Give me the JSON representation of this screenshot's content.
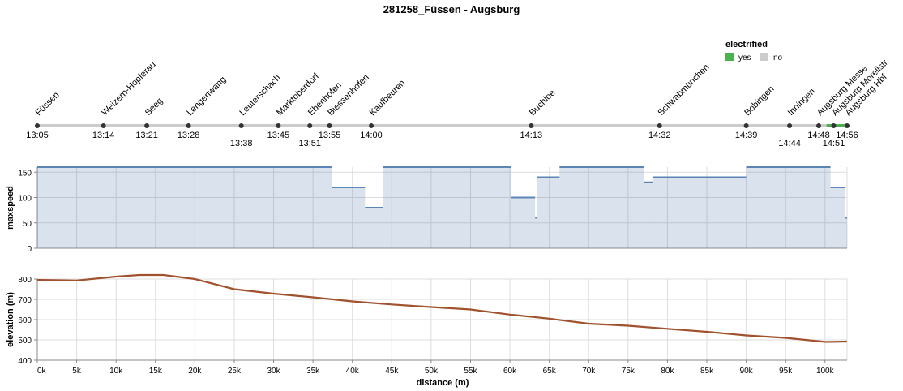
{
  "chart_data": [
    {
      "type": "timeline",
      "title": "281258_Füssen - Augsburg",
      "legend": {
        "title": "electrified",
        "position": "top-right",
        "entries": [
          {
            "label": "yes",
            "color": "#4caf50"
          },
          {
            "label": "no",
            "color": "#cccccc"
          }
        ]
      },
      "electrified_segments": [
        {
          "from_km": 62.7,
          "to_km": 63.0,
          "value": "yes"
        },
        {
          "from_km": 100.2,
          "to_km": 102.8,
          "value": "yes"
        }
      ],
      "stations": [
        {
          "name": "Füssen",
          "km": 0,
          "time": "13:05",
          "time_row": 0
        },
        {
          "name": "Weizern-Hopferau",
          "km": 8.4,
          "time": "13:14",
          "time_row": 0
        },
        {
          "name": "Seeg",
          "km": 13.9,
          "time": "13:21",
          "time_row": 0
        },
        {
          "name": "Lengenwang",
          "km": 19.2,
          "time": "13:28",
          "time_row": 0
        },
        {
          "name": "Leuterschach",
          "km": 25.9,
          "time": "13:38",
          "time_row": 1
        },
        {
          "name": "Marktoberdorf",
          "km": 30.6,
          "time": "13:45",
          "time_row": 0
        },
        {
          "name": "Ebenhofen",
          "km": 34.6,
          "time": "13:51",
          "time_row": 1
        },
        {
          "name": "Biessenhofen",
          "km": 37.1,
          "time": "13:55",
          "time_row": 0
        },
        {
          "name": "Kaufbeuren",
          "km": 42.4,
          "time": "14:00",
          "time_row": 0
        },
        {
          "name": "Buchloe",
          "km": 62.7,
          "time": "14:13",
          "time_row": 0
        },
        {
          "name": "Schwabmünchen",
          "km": 79.0,
          "time": "14:32",
          "time_row": 0
        },
        {
          "name": "Bobingen",
          "km": 90.0,
          "time": "14:39",
          "time_row": 0
        },
        {
          "name": "Inningen",
          "km": 95.5,
          "time": "14:44",
          "time_row": 1
        },
        {
          "name": "Augsburg Messe",
          "km": 99.2,
          "time": "14:48",
          "time_row": 0
        },
        {
          "name": "Augsburg Morellstr.",
          "km": 101.1,
          "time": "14:51",
          "time_row": 1
        },
        {
          "name": "Augsburg Hbf",
          "km": 102.8,
          "time": "14:56",
          "time_row": 0
        }
      ]
    },
    {
      "type": "area",
      "ylabel": "maxspeed",
      "ylim": [
        0,
        160
      ],
      "yticks": [
        0,
        50,
        100,
        150
      ],
      "segments": [
        {
          "from_km": 0,
          "to_km": 37.4,
          "value": 160
        },
        {
          "from_km": 37.4,
          "to_km": 41.6,
          "value": 120
        },
        {
          "from_km": 41.6,
          "to_km": 43.9,
          "value": 80
        },
        {
          "from_km": 43.9,
          "to_km": 60.2,
          "value": 160
        },
        {
          "from_km": 60.2,
          "to_km": 63.2,
          "value": 100
        },
        {
          "from_km": 63.2,
          "to_km": 63.4,
          "value": 60
        },
        {
          "from_km": 63.4,
          "to_km": 66.3,
          "value": 140
        },
        {
          "from_km": 66.3,
          "to_km": 77.0,
          "value": 160
        },
        {
          "from_km": 77.0,
          "to_km": 78.1,
          "value": 130
        },
        {
          "from_km": 78.1,
          "to_km": 90.0,
          "value": 140
        },
        {
          "from_km": 90.0,
          "to_km": 100.7,
          "value": 160
        },
        {
          "from_km": 100.7,
          "to_km": 102.6,
          "value": 120
        },
        {
          "from_km": 102.6,
          "to_km": 102.8,
          "value": 60
        }
      ]
    },
    {
      "type": "line",
      "ylabel": "elevation (m)",
      "xlabel": "distance (m)",
      "ylim": [
        400,
        800
      ],
      "yticks": [
        400,
        500,
        600,
        700,
        800
      ],
      "xlim": [
        0,
        102.8
      ],
      "xticks": [
        "0k",
        "5k",
        "10k",
        "15k",
        "20k",
        "25k",
        "30k",
        "35k",
        "40k",
        "45k",
        "50k",
        "55k",
        "60k",
        "65k",
        "70k",
        "75k",
        "80k",
        "85k",
        "90k",
        "95k",
        "100k"
      ],
      "x_km": [
        0,
        5,
        10,
        13,
        16,
        20,
        25,
        30,
        35,
        40,
        45,
        50,
        55,
        60,
        65,
        70,
        75,
        80,
        85,
        90,
        95,
        100,
        102.8
      ],
      "y": [
        796,
        793,
        812,
        820,
        820,
        800,
        750,
        728,
        710,
        690,
        675,
        662,
        650,
        625,
        605,
        580,
        570,
        555,
        540,
        522,
        510,
        490,
        492
      ]
    }
  ]
}
